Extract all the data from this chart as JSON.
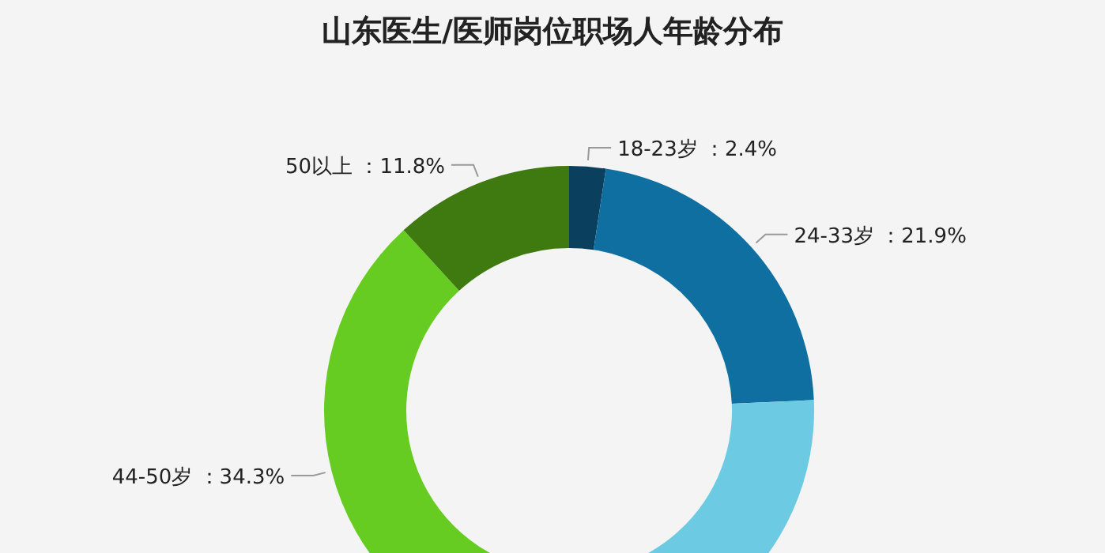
{
  "chart_data": {
    "type": "donut",
    "title": "山东医生/医师岗位职场人年龄分布",
    "categories": [
      "18-23岁",
      "24-33岁",
      null,
      "44-50岁",
      "50以上"
    ],
    "values": [
      2.4,
      21.9,
      29.6,
      34.3,
      11.8
    ],
    "value_labels": [
      "：2.4%",
      "：21.9%",
      null,
      "：34.3%",
      "：11.8%"
    ],
    "colors": [
      "#0b3f5e",
      "#0e6fa0",
      "#6ccbe3",
      "#66cc22",
      "#3f7a10"
    ],
    "legend": false
  }
}
